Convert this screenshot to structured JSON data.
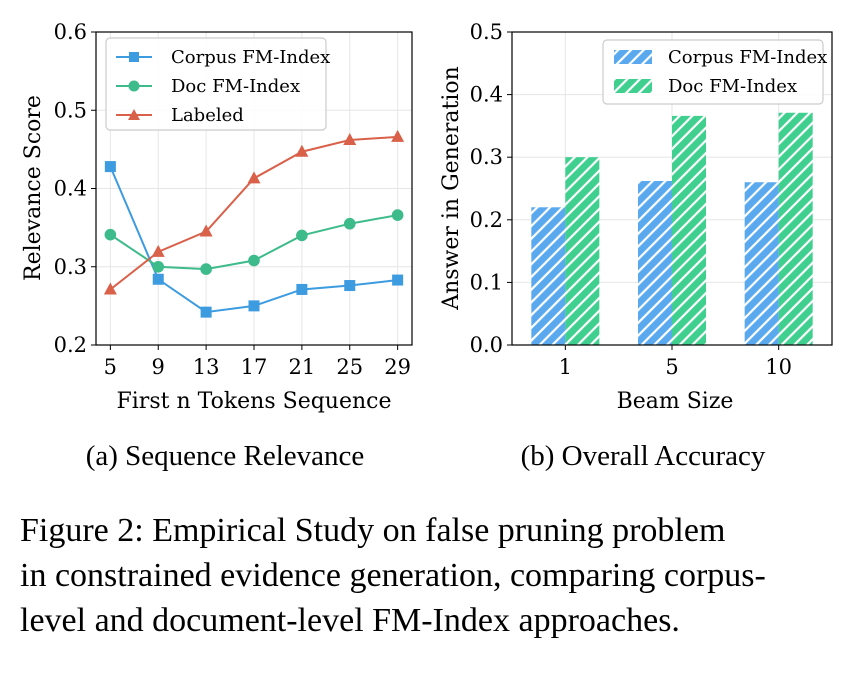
{
  "chart_data": [
    {
      "type": "line",
      "subcaption": "(a) Sequence Relevance",
      "xlabel": "First n Tokens Sequence",
      "ylabel": "Relevance Score",
      "x": [
        5,
        9,
        13,
        17,
        21,
        25,
        29
      ],
      "xticks": [
        "5",
        "9",
        "13",
        "17",
        "21",
        "25",
        "29"
      ],
      "ylim": [
        0.2,
        0.6
      ],
      "yticks": [
        "0.2",
        "0.3",
        "0.4",
        "0.5",
        "0.6"
      ],
      "grid": true,
      "legend_position": "top-left",
      "series": [
        {
          "name": "Corpus FM-Index",
          "marker": "square",
          "color": "#3d9be0",
          "values": [
            0.428,
            0.284,
            0.242,
            0.25,
            0.271,
            0.276,
            0.283
          ]
        },
        {
          "name": "Doc FM-Index",
          "marker": "circle",
          "color": "#3dbb8a",
          "values": [
            0.341,
            0.3,
            0.297,
            0.308,
            0.34,
            0.355,
            0.366
          ]
        },
        {
          "name": "Labeled",
          "marker": "triangle",
          "color": "#d9614a",
          "values": [
            0.271,
            0.319,
            0.345,
            0.413,
            0.447,
            0.462,
            0.466
          ]
        }
      ]
    },
    {
      "type": "bar",
      "subcaption": "(b) Overall Accuracy",
      "xlabel": "Beam Size",
      "ylabel": "Answer in Generation",
      "categories": [
        "1",
        "5",
        "10"
      ],
      "ylim": [
        0.0,
        0.5
      ],
      "yticks": [
        "0.0",
        "0.1",
        "0.2",
        "0.3",
        "0.4",
        "0.5"
      ],
      "grid": true,
      "legend_position": "top-right",
      "series": [
        {
          "name": "Corpus FM-Index",
          "color": "#5aa9ef",
          "values": [
            0.22,
            0.262,
            0.26
          ]
        },
        {
          "name": "Doc FM-Index",
          "color": "#3fcf8e",
          "values": [
            0.3,
            0.366,
            0.371
          ]
        }
      ]
    }
  ],
  "caption": {
    "line1": "Figure 2: Empirical Study on false pruning problem",
    "line2": "in constrained evidence generation, comparing corpus-",
    "line3": "level and document-level FM-Index approaches."
  }
}
